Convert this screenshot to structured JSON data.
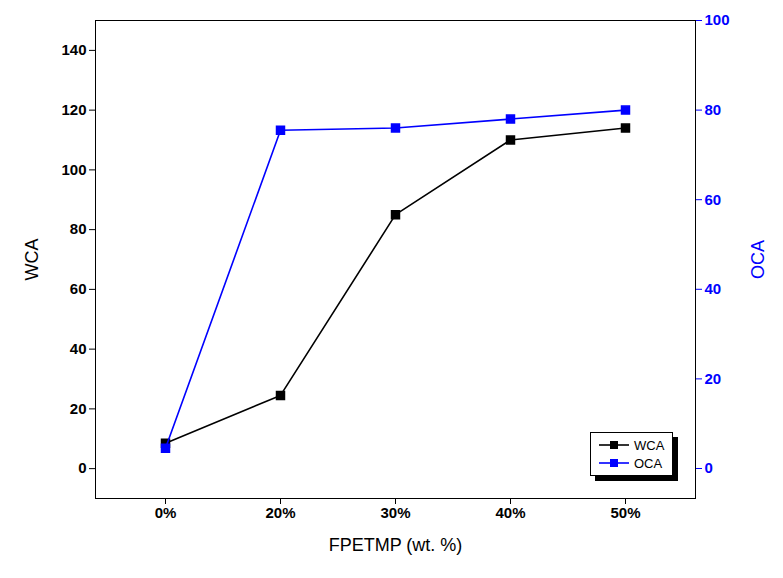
{
  "chart_data": {
    "type": "line",
    "x_label": "FPETMP (wt. %)",
    "y_label": "WCA",
    "y2_label": "OCA",
    "categories": [
      "0%",
      "20%",
      "30%",
      "40%",
      "50%"
    ],
    "ylim": [
      -10,
      150
    ],
    "yticks": [
      0,
      20,
      40,
      60,
      80,
      100,
      120,
      140
    ],
    "y2lim": [
      -6.7,
      100
    ],
    "y2ticks": [
      0,
      20,
      40,
      60,
      80,
      100
    ],
    "legend": "lower right",
    "series": [
      {
        "name": "WCA",
        "color": "#000000",
        "marker": "square",
        "values": [
          8.5,
          24.5,
          85,
          110,
          114
        ]
      },
      {
        "name": "OCA",
        "color": "#0000ff",
        "marker": "square",
        "axis": "y2",
        "values": [
          4.5,
          75.5,
          76,
          78,
          80
        ]
      }
    ]
  }
}
